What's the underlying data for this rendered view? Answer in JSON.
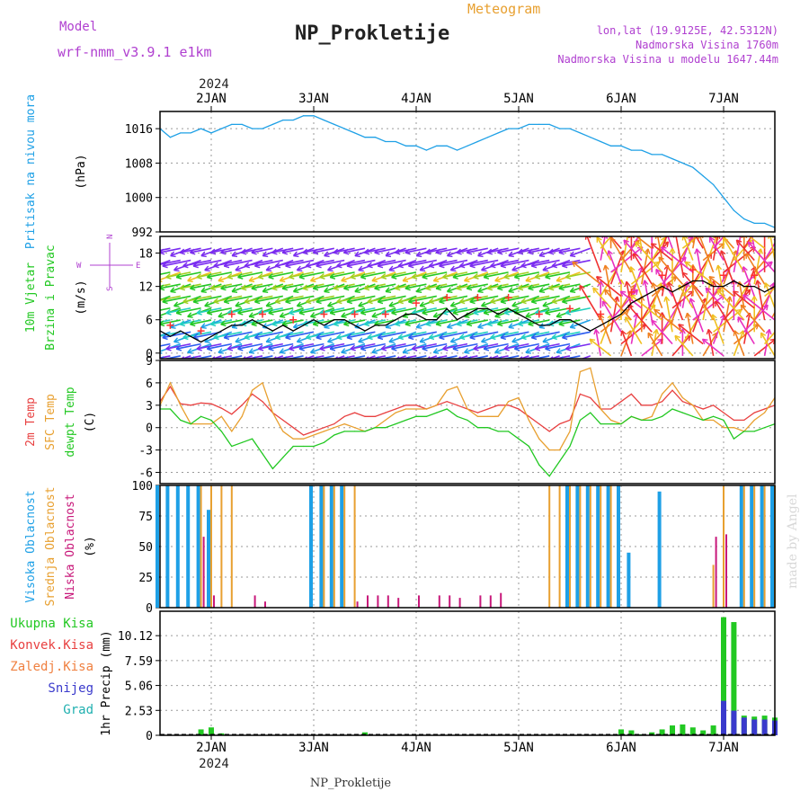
{
  "header": {
    "model_label": "Model",
    "model_name": "wrf-nmm_v3.9.1 e1km",
    "title": "NP_Prokletije",
    "subtitle": "Meteogram",
    "coords": "lon,lat (19.9125E, 42.5312N)",
    "elevation": "Nadmorska Visina 1760m",
    "model_elevation": "Nadmorska Visina u modelu 1647.44m",
    "watermark": "made by Angel",
    "footer": "NP_Prokletije"
  },
  "time_axis": {
    "year": "2024",
    "days": [
      "2JAN",
      "3JAN",
      "4JAN",
      "5JAN",
      "6JAN",
      "7JAN"
    ]
  },
  "wind_compass": {
    "n": "N",
    "s": "S",
    "e": "E",
    "w": "W"
  },
  "colors": {
    "pressure": "#1ea0e6",
    "wind_label": "#22c822",
    "wind_speed": "#000000",
    "gust_marker": "#ff3030",
    "temp2m": "#e84040",
    "sfc_temp": "#e8a030",
    "dewpoint": "#22c822",
    "cloud_high": "#1ea0e6",
    "cloud_mid": "#e8a030",
    "cloud_low": "#c8187a",
    "precip_total": "#22c822",
    "precip_snow": "#3a3acc",
    "precip_conv": "#e84040",
    "compass": "#b040d0",
    "header_purple": "#b040d0",
    "header_orange": "#e8a030",
    "watermark": "#d8d8d8"
  },
  "chart_data": [
    {
      "type": "line",
      "panel": "pressure",
      "labels": [
        "Pritisak na nivou mora",
        "(hPa)"
      ],
      "yticks": [
        992,
        1000,
        1008,
        1016
      ],
      "ylim": [
        992,
        1020
      ],
      "xlim": [
        1.5,
        7.5
      ],
      "x": [
        1.5,
        1.6,
        1.7,
        1.8,
        1.9,
        2.0,
        2.1,
        2.2,
        2.3,
        2.4,
        2.5,
        2.6,
        2.7,
        2.8,
        2.9,
        3.0,
        3.1,
        3.2,
        3.3,
        3.4,
        3.5,
        3.6,
        3.7,
        3.8,
        3.9,
        4.0,
        4.1,
        4.2,
        4.3,
        4.4,
        4.5,
        4.6,
        4.7,
        4.8,
        4.9,
        5.0,
        5.1,
        5.2,
        5.3,
        5.4,
        5.5,
        5.6,
        5.7,
        5.8,
        5.9,
        6.0,
        6.1,
        6.2,
        6.3,
        6.4,
        6.5,
        6.6,
        6.7,
        6.8,
        6.9,
        7.0,
        7.1,
        7.2,
        7.3,
        7.4,
        7.5
      ],
      "series": [
        {
          "values": [
            1016,
            1014,
            1015,
            1015,
            1016,
            1015,
            1016,
            1017,
            1017,
            1016,
            1016,
            1017,
            1018,
            1018,
            1019,
            1019,
            1018,
            1017,
            1016,
            1015,
            1014,
            1014,
            1013,
            1013,
            1012,
            1012,
            1011,
            1012,
            1012,
            1011,
            1012,
            1013,
            1014,
            1015,
            1016,
            1016,
            1017,
            1017,
            1017,
            1016,
            1016,
            1015,
            1014,
            1013,
            1012,
            1012,
            1011,
            1011,
            1010,
            1010,
            1009,
            1008,
            1007,
            1005,
            1003,
            1000,
            997,
            995,
            994,
            994,
            993
          ]
        }
      ]
    },
    {
      "type": "line",
      "panel": "wind",
      "labels": [
        "10m Vjetar",
        "Brzina i Pravac",
        "(m/s)"
      ],
      "yticks": [
        0,
        6,
        12,
        18
      ],
      "ylim": [
        -1,
        21
      ],
      "xlim": [
        1.5,
        7.5
      ],
      "x": [
        1.5,
        1.6,
        1.7,
        1.8,
        1.9,
        2.0,
        2.1,
        2.2,
        2.3,
        2.4,
        2.5,
        2.6,
        2.7,
        2.8,
        2.9,
        3.0,
        3.1,
        3.2,
        3.3,
        3.4,
        3.5,
        3.6,
        3.7,
        3.8,
        3.9,
        4.0,
        4.1,
        4.2,
        4.3,
        4.4,
        4.5,
        4.6,
        4.7,
        4.8,
        4.9,
        5.0,
        5.1,
        5.2,
        5.3,
        5.4,
        5.5,
        5.6,
        5.7,
        5.8,
        5.9,
        6.0,
        6.1,
        6.2,
        6.3,
        6.4,
        6.5,
        6.6,
        6.7,
        6.8,
        6.9,
        7.0,
        7.1,
        7.2,
        7.3,
        7.4,
        7.5
      ],
      "series": [
        {
          "values": [
            4,
            3,
            4,
            3,
            2,
            3,
            4,
            5,
            5,
            6,
            5,
            4,
            5,
            4,
            5,
            6,
            5,
            6,
            6,
            5,
            4,
            5,
            5,
            6,
            7,
            7,
            6,
            6,
            8,
            6,
            7,
            8,
            8,
            7,
            8,
            7,
            6,
            5,
            5,
            6,
            6,
            5,
            4,
            5,
            6,
            7,
            9,
            10,
            11,
            12,
            11,
            12,
            13,
            13,
            12,
            12,
            13,
            12,
            12,
            11,
            12
          ]
        }
      ]
    },
    {
      "type": "line",
      "panel": "temperature",
      "labels": [
        "2m Temp",
        "SFC Temp",
        "dewpt Temp",
        "(C)"
      ],
      "yticks": [
        -6,
        -3,
        0,
        3,
        6,
        9
      ],
      "ylim": [
        -7.5,
        9
      ],
      "xlim": [
        1.5,
        7.5
      ],
      "x": [
        1.5,
        1.6,
        1.7,
        1.8,
        1.9,
        2.0,
        2.1,
        2.2,
        2.3,
        2.4,
        2.5,
        2.6,
        2.7,
        2.8,
        2.9,
        3.0,
        3.1,
        3.2,
        3.3,
        3.4,
        3.5,
        3.6,
        3.7,
        3.8,
        3.9,
        4.0,
        4.1,
        4.2,
        4.3,
        4.4,
        4.5,
        4.6,
        4.7,
        4.8,
        4.9,
        5.0,
        5.1,
        5.2,
        5.3,
        5.4,
        5.5,
        5.6,
        5.7,
        5.8,
        5.9,
        6.0,
        6.1,
        6.2,
        6.3,
        6.4,
        6.5,
        6.6,
        6.7,
        6.8,
        6.9,
        7.0,
        7.1,
        7.2,
        7.3,
        7.4,
        7.5
      ],
      "series": [
        {
          "name": "2m Temp",
          "values": [
            3.5,
            5.5,
            3.2,
            3.0,
            3.3,
            3.2,
            2.6,
            1.8,
            3.0,
            4.5,
            3.5,
            2.0,
            1.0,
            0,
            -1,
            -0.5,
            0,
            0.5,
            1.5,
            2.0,
            1.5,
            1.5,
            2.0,
            2.5,
            3.0,
            3.0,
            2.5,
            3.0,
            3.5,
            3.0,
            2.5,
            2.0,
            2.5,
            3.0,
            3.0,
            2.5,
            1.5,
            0.5,
            -0.5,
            0.5,
            1.0,
            4.5,
            4.0,
            2.5,
            2.5,
            3.5,
            4.5,
            3.0,
            3.0,
            3.5,
            5.0,
            3.5,
            3.0,
            2.5,
            3.0,
            2.0,
            1.0,
            1.0,
            2.0,
            2.5,
            3.0
          ]
        },
        {
          "name": "SFC Temp",
          "values": [
            3.0,
            6.0,
            3.0,
            0.5,
            0.5,
            0.5,
            1.5,
            -0.5,
            1.5,
            5.0,
            6.0,
            2.0,
            -0.5,
            -1.5,
            -1.5,
            -1.0,
            -0.5,
            0,
            0.5,
            0,
            -0.5,
            0,
            1.0,
            2.0,
            2.5,
            2.5,
            2.5,
            3.0,
            5.0,
            5.5,
            2.5,
            1.5,
            1.5,
            1.5,
            3.5,
            4.0,
            1.0,
            -1.5,
            -3.0,
            -3.0,
            -0.5,
            7.5,
            8.0,
            2.5,
            1.0,
            0.5,
            1.5,
            1.0,
            1.5,
            4.5,
            6.0,
            4.0,
            3.0,
            1.0,
            1.0,
            0,
            0,
            -0.5,
            1.0,
            2.0,
            4.0
          ]
        },
        {
          "name": "dewpt Temp",
          "values": [
            2.5,
            2.5,
            1.0,
            0.5,
            1.5,
            1.0,
            -0.5,
            -2.5,
            -2.0,
            -1.5,
            -3.5,
            -5.5,
            -4.0,
            -2.5,
            -2.5,
            -2.5,
            -2.0,
            -1.0,
            -0.5,
            -0.5,
            -0.5,
            0,
            0,
            0.5,
            1.0,
            1.5,
            1.5,
            2.0,
            2.5,
            1.5,
            1.0,
            0,
            0,
            -0.5,
            -0.5,
            -1.5,
            -2.5,
            -5.0,
            -6.5,
            -4.5,
            -2.5,
            1.0,
            2.0,
            0.5,
            0.5,
            0.5,
            1.5,
            1.0,
            1.0,
            1.5,
            2.5,
            2.0,
            1.5,
            1.0,
            1.5,
            1.0,
            -1.5,
            -0.5,
            -0.5,
            0,
            0.5
          ]
        }
      ]
    },
    {
      "type": "bar",
      "panel": "clouds",
      "labels": [
        "Visoka Oblacnost",
        "Srednja Oblacnost",
        "Niska Oblacnost",
        "(%)"
      ],
      "yticks": [
        0,
        25,
        50,
        75,
        100
      ],
      "ylim": [
        0,
        100
      ],
      "xlim": [
        1.5,
        7.5
      ],
      "x": [
        1.5,
        1.6,
        1.7,
        1.8,
        1.9,
        2.0,
        2.1,
        2.2,
        2.3,
        2.4,
        2.5,
        2.6,
        2.7,
        2.8,
        2.9,
        3.0,
        3.1,
        3.2,
        3.3,
        3.4,
        3.5,
        3.6,
        3.7,
        3.8,
        3.9,
        4.0,
        4.1,
        4.2,
        4.3,
        4.4,
        4.5,
        4.6,
        4.7,
        4.8,
        4.9,
        5.0,
        5.1,
        5.2,
        5.3,
        5.4,
        5.5,
        5.6,
        5.7,
        5.8,
        5.9,
        6.0,
        6.1,
        6.2,
        6.3,
        6.4,
        6.5,
        6.6,
        6.7,
        6.8,
        6.9,
        7.0,
        7.1,
        7.2,
        7.3,
        7.4,
        7.5
      ],
      "series": [
        {
          "name": "Visoka Oblacnost",
          "values": [
            100,
            100,
            100,
            100,
            100,
            80,
            0,
            0,
            0,
            0,
            0,
            0,
            0,
            0,
            0,
            100,
            100,
            100,
            100,
            0,
            0,
            0,
            0,
            0,
            0,
            0,
            0,
            0,
            0,
            0,
            0,
            0,
            0,
            0,
            0,
            0,
            0,
            0,
            0,
            0,
            100,
            100,
            100,
            100,
            100,
            100,
            45,
            0,
            0,
            95,
            0,
            0,
            0,
            0,
            0,
            0,
            0,
            100,
            100,
            100,
            100
          ]
        },
        {
          "name": "Srednja Oblacnost",
          "values": [
            0,
            0,
            0,
            0,
            100,
            100,
            100,
            100,
            0,
            0,
            0,
            0,
            0,
            0,
            0,
            0,
            100,
            100,
            100,
            100,
            0,
            0,
            0,
            0,
            0,
            0,
            0,
            0,
            0,
            0,
            0,
            0,
            0,
            0,
            0,
            0,
            0,
            0,
            100,
            100,
            100,
            100,
            100,
            100,
            100,
            0,
            0,
            0,
            0,
            0,
            0,
            0,
            0,
            0,
            35,
            100,
            0,
            100,
            100,
            100,
            100
          ]
        },
        {
          "name": "Niska Oblacnost",
          "values": [
            0,
            0,
            0,
            0,
            58,
            10,
            0,
            0,
            0,
            10,
            5,
            0,
            0,
            0,
            0,
            0,
            0,
            0,
            0,
            5,
            10,
            10,
            10,
            8,
            0,
            10,
            0,
            10,
            10,
            8,
            0,
            10,
            10,
            12,
            0,
            0,
            0,
            0,
            0,
            0,
            0,
            0,
            0,
            0,
            0,
            0,
            0,
            0,
            0,
            0,
            0,
            0,
            0,
            0,
            58,
            60,
            0,
            0,
            0,
            0,
            0
          ]
        }
      ]
    },
    {
      "type": "bar",
      "panel": "precip",
      "labels": [
        "Ukupna Kisa",
        "Konvek.Kisa",
        "Zaledj.Kisa",
        "Snijeg",
        "Grad",
        "1hr Precip (mm)"
      ],
      "yticks": [
        0,
        2.53,
        5.06,
        7.59,
        10.12
      ],
      "ylim": [
        0,
        12.6
      ],
      "xlim": [
        1.5,
        7.5
      ],
      "x": [
        1.5,
        1.6,
        1.7,
        1.8,
        1.9,
        2.0,
        2.1,
        2.2,
        2.3,
        2.4,
        2.5,
        2.6,
        2.7,
        2.8,
        2.9,
        3.0,
        3.1,
        3.2,
        3.3,
        3.4,
        3.5,
        3.6,
        3.7,
        3.8,
        3.9,
        4.0,
        4.1,
        4.2,
        4.3,
        4.4,
        4.5,
        4.6,
        4.7,
        4.8,
        4.9,
        5.0,
        5.1,
        5.2,
        5.3,
        5.4,
        5.5,
        5.6,
        5.7,
        5.8,
        5.9,
        6.0,
        6.1,
        6.2,
        6.3,
        6.4,
        6.5,
        6.6,
        6.7,
        6.8,
        6.9,
        7.0,
        7.1,
        7.2,
        7.3,
        7.4,
        7.5
      ],
      "series": [
        {
          "name": "Ukupna Kisa",
          "values": [
            0,
            0,
            0,
            0,
            0.6,
            0.8,
            0.2,
            0,
            0,
            0,
            0,
            0,
            0,
            0,
            0,
            0,
            0,
            0,
            0,
            0,
            0.3,
            0,
            0,
            0,
            0,
            0,
            0,
            0,
            0,
            0,
            0,
            0,
            0,
            0,
            0,
            0,
            0,
            0,
            0,
            0,
            0,
            0,
            0,
            0,
            0,
            0.6,
            0.5,
            0.1,
            0.3,
            0.6,
            1.0,
            1.1,
            0.8,
            0.5,
            1.0,
            12.0,
            11.5,
            2.0,
            1.9,
            2.0,
            1.8
          ]
        },
        {
          "name": "Snijeg",
          "values": [
            0,
            0,
            0,
            0,
            0,
            0,
            0,
            0,
            0,
            0,
            0,
            0,
            0,
            0,
            0,
            0,
            0,
            0,
            0,
            0,
            0,
            0,
            0,
            0,
            0,
            0,
            0,
            0,
            0,
            0,
            0,
            0,
            0,
            0,
            0,
            0,
            0,
            0,
            0,
            0,
            0,
            0,
            0,
            0,
            0,
            0,
            0,
            0,
            0,
            0,
            0,
            0,
            0,
            0,
            0,
            3.5,
            2.5,
            1.8,
            1.6,
            1.6,
            1.5
          ]
        }
      ]
    }
  ]
}
